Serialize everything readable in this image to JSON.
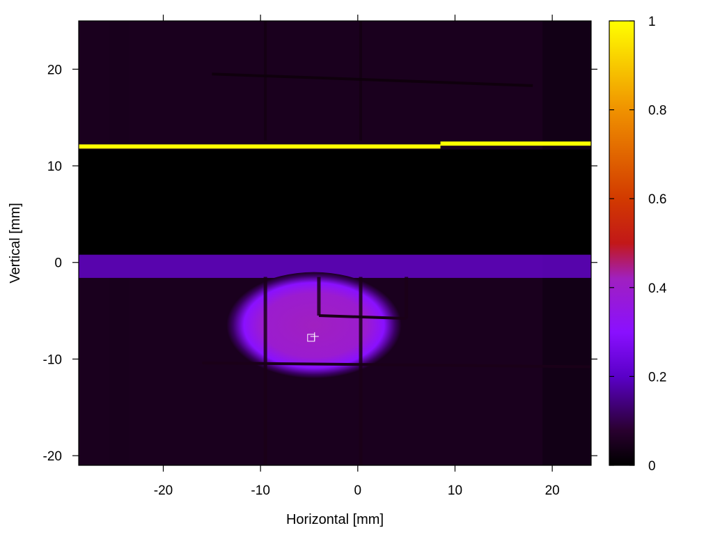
{
  "chart_data": {
    "type": "heatmap",
    "title": "",
    "xlabel": "Horizontal [mm]",
    "ylabel": "Vertical [mm]",
    "xlim": [
      -28.7,
      24
    ],
    "ylim": [
      -21,
      25
    ],
    "xticks": [
      -20,
      -10,
      0,
      10,
      20
    ],
    "yticks": [
      -20,
      -10,
      0,
      10,
      20
    ],
    "colorbar": {
      "range": [
        0,
        1
      ],
      "ticks": [
        0,
        0.2,
        0.4,
        0.6,
        0.8,
        1
      ],
      "tick_labels": [
        "0",
        "0.2",
        "0.4",
        "0.6",
        "0.8",
        "1"
      ],
      "stops": [
        {
          "v": 0.0,
          "color": "#000000"
        },
        {
          "v": 0.08,
          "color": "#2a0030"
        },
        {
          "v": 0.2,
          "color": "#5a00c8"
        },
        {
          "v": 0.3,
          "color": "#8a10ff"
        },
        {
          "v": 0.42,
          "color": "#a020c0"
        },
        {
          "v": 0.5,
          "color": "#c21818"
        },
        {
          "v": 0.6,
          "color": "#d23a00"
        },
        {
          "v": 0.8,
          "color": "#f09200"
        },
        {
          "v": 1.0,
          "color": "#ffff00"
        }
      ]
    },
    "features": {
      "background_level": 0.05,
      "dark_band": {
        "y_from": 0.8,
        "y_to": 11.7,
        "value": 0.0
      },
      "bright_line": [
        {
          "x_from": -28.7,
          "x_to": 8.5,
          "y": 12.0,
          "value": 1.0
        },
        {
          "x_from": 8.5,
          "x_to": 24,
          "y": 12.3,
          "value": 1.0
        }
      ],
      "horizontal_band": {
        "y_from": -1.6,
        "y_to": 0.8,
        "value": 0.24
      },
      "beam_spot": {
        "center": [
          -4.5,
          -6.5
        ],
        "half_width": 9,
        "half_height": 5.5,
        "peak_value": 0.42
      },
      "marker": {
        "x": -4.8,
        "y": -7.8
      }
    }
  }
}
